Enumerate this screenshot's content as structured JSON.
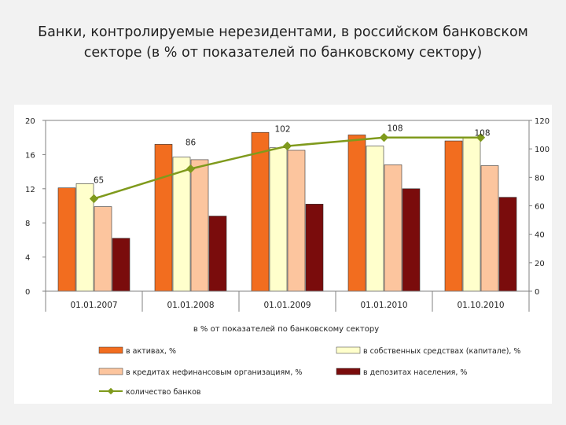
{
  "slide": {
    "title_line1": "Банки, контролируемые нерезидентами, в российском банковском",
    "title_line2": "секторе (в % от показателей по банковскому сектору)"
  },
  "chart_data": {
    "type": "bar",
    "categories": [
      "01.01.2007",
      "01.01.2008",
      "01.01.2009",
      "01.01.2010",
      "01.10.2010"
    ],
    "xlabel": "в % от показателей по банковскому сектору",
    "ylim": [
      0,
      20
    ],
    "y_ticks": [
      "0",
      "4",
      "8",
      "12",
      "16",
      "20"
    ],
    "y2lim": [
      0,
      120
    ],
    "y2_ticks": [
      "0",
      "20",
      "40",
      "60",
      "80",
      "100",
      "120"
    ],
    "grid": "horizontal at top tick only",
    "legend_position": "bottom",
    "series": [
      {
        "name": "в активах, %",
        "axis": "left",
        "color": "#f26d1f",
        "values": [
          12.1,
          17.2,
          18.6,
          18.3,
          17.6
        ]
      },
      {
        "name": "в собственных средствах (капитале), %",
        "axis": "left",
        "color": "#ffffcc",
        "values": [
          12.6,
          15.7,
          16.8,
          17.0,
          18.0
        ]
      },
      {
        "name": "в кредитах нефинансовым организациям, %",
        "axis": "left",
        "color": "#fcc59e",
        "values": [
          9.9,
          15.4,
          16.5,
          14.8,
          14.7
        ]
      },
      {
        "name": "в депозитах населения, %",
        "axis": "left",
        "color": "#7a0c0c",
        "values": [
          6.2,
          8.8,
          10.2,
          12.0,
          11.0
        ]
      },
      {
        "name": "количество банков",
        "axis": "right",
        "type": "line",
        "color": "#7f9a1c",
        "values": [
          65,
          86,
          102,
          108,
          108
        ]
      }
    ],
    "data_labels": [
      "65",
      "86",
      "102",
      "108",
      "108"
    ]
  }
}
